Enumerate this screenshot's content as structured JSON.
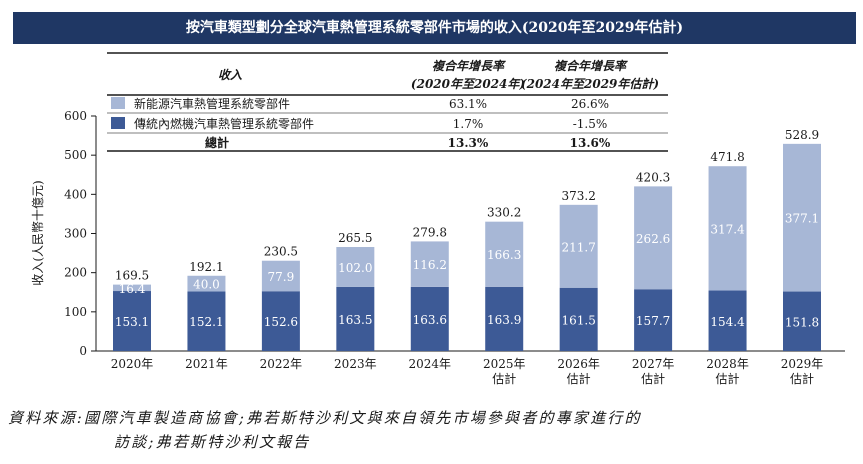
{
  "title": "按汽車類型劃分全球汽車熱管理系統零部件市場的收入(2020年至2029年估計)",
  "table": {
    "header_label": "收入",
    "col1_header": [
      "複合年增長率",
      "(2020年至2024年)"
    ],
    "col2_header": [
      "複合年增長率",
      "(2024年至2029年估計)"
    ],
    "rows": [
      {
        "label": "新能源汽車熱管理系統零部件",
        "cagr1": "63.1%",
        "cagr2": "26.6%",
        "color": "#a7b7d6"
      },
      {
        "label": "傳統內燃機汽車熱管理系統零部件",
        "cagr1": "1.7%",
        "cagr2": "-1.5%",
        "color": "#3d5a96"
      },
      {
        "label": "總計",
        "cagr1": "13.3%",
        "cagr2": "13.6%"
      }
    ]
  },
  "chart_data": {
    "type": "bar",
    "stacked": true,
    "ylabel": "收入(人民幣十億元)",
    "ylim": [
      0,
      600
    ],
    "yticks": [
      0,
      100,
      200,
      300,
      400,
      500,
      600
    ],
    "categories": [
      [
        "2020年"
      ],
      [
        "2021年"
      ],
      [
        "2022年"
      ],
      [
        "2023年"
      ],
      [
        "2024年"
      ],
      [
        "2025年",
        "估計"
      ],
      [
        "2026年",
        "估計"
      ],
      [
        "2027年",
        "估計"
      ],
      [
        "2028年",
        "估計"
      ],
      [
        "2029年",
        "估計"
      ]
    ],
    "series": [
      {
        "name": "傳統內燃機汽車熱管理系統零部件",
        "color": "#3d5a96",
        "values": [
          153.1,
          152.1,
          152.6,
          163.5,
          163.6,
          163.9,
          161.5,
          157.7,
          154.4,
          151.8
        ]
      },
      {
        "name": "新能源汽車熱管理系統零部件",
        "color": "#a7b7d6",
        "values": [
          16.4,
          40.0,
          77.9,
          102.0,
          116.2,
          166.3,
          211.7,
          262.6,
          317.4,
          377.1
        ]
      }
    ],
    "totals": [
      169.5,
      192.1,
      230.5,
      265.5,
      279.8,
      330.2,
      373.2,
      420.3,
      471.8,
      528.9
    ],
    "grid": false,
    "legend": "table-top"
  },
  "source": [
    "資料來源:國際汽車製造商協會;弗若斯特沙利文與來自領先市場參與者的專家進行的",
    "訪談;弗若斯特沙利文報告"
  ]
}
